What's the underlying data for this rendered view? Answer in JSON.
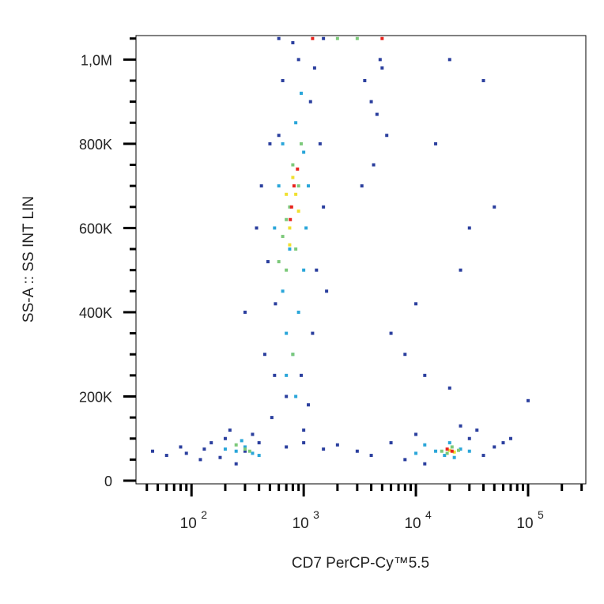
{
  "chart_data": {
    "type": "scatter",
    "x_label": "CD7 PerCP-Cy™5.5",
    "y_label": "SS-A :: SS INT LIN",
    "x_log": true,
    "xlim": [
      32,
      327000
    ],
    "ylim": [
      -7500,
      1057000
    ],
    "xticks": [
      {
        "value": 100,
        "label": "10",
        "sup": "2"
      },
      {
        "value": 1000,
        "label": "10",
        "sup": "3"
      },
      {
        "value": 10000,
        "label": "10",
        "sup": "4"
      },
      {
        "value": 100000,
        "label": "10",
        "sup": "5"
      }
    ],
    "xminorticks": [
      40,
      50,
      60,
      70,
      80,
      90,
      200,
      300,
      400,
      500,
      600,
      700,
      800,
      900,
      2000,
      3000,
      4000,
      5000,
      6000,
      7000,
      8000,
      9000,
      20000,
      30000,
      40000,
      50000,
      60000,
      70000,
      80000,
      90000,
      200000,
      300000
    ],
    "yticks": [
      0,
      {
        "value": 200000,
        "label": "200K"
      },
      {
        "value": 400000,
        "label": "400K"
      },
      {
        "value": 600000,
        "label": "600K"
      },
      {
        "value": 800000,
        "label": "800K"
      },
      {
        "value": 1000000,
        "label": "1,0M"
      }
    ],
    "yminorticks": [
      50000,
      100000,
      150000,
      250000,
      300000,
      350000,
      450000,
      500000,
      550000,
      650000,
      700000,
      750000,
      850000,
      900000,
      950000,
      1050000
    ],
    "series": [
      {
        "color": "#2b3f9e",
        "x": [
          450,
          520,
          560,
          1300,
          1200,
          480,
          420,
          1400,
          650,
          900,
          1150,
          380,
          1500,
          700,
          1000,
          600,
          1250,
          500,
          800,
          950,
          550,
          1100,
          300,
          1600,
          60,
          80,
          120,
          150,
          200,
          250,
          300,
          90,
          180,
          350,
          400,
          45,
          130,
          220,
          700,
          1000,
          1500,
          2000,
          3000,
          4000,
          6000,
          8000,
          10000,
          30000,
          40000,
          50000,
          60000,
          12000,
          35000,
          25000,
          70000,
          3500,
          4000,
          4500,
          5000,
          4200,
          3300,
          5500,
          4800,
          20000,
          15000,
          40000,
          25000,
          10000,
          8000,
          20000,
          50000,
          30000,
          12000,
          100000,
          6000,
          600,
          1500
        ],
        "values": [
          300000,
          150000,
          420000,
          500000,
          350000,
          520000,
          700000,
          800000,
          950000,
          1000000,
          900000,
          600000,
          650000,
          200000,
          120000,
          820000,
          980000,
          800000,
          1040000,
          250000,
          250000,
          180000,
          400000,
          450000,
          60000,
          80000,
          50000,
          90000,
          100000,
          40000,
          70000,
          65000,
          55000,
          110000,
          90000,
          70000,
          75000,
          120000,
          80000,
          90000,
          75000,
          85000,
          70000,
          60000,
          90000,
          50000,
          110000,
          100000,
          60000,
          80000,
          90000,
          40000,
          120000,
          130000,
          100000,
          950000,
          900000,
          870000,
          980000,
          750000,
          700000,
          820000,
          1000000,
          1000000,
          800000,
          950000,
          500000,
          420000,
          300000,
          220000,
          650000,
          600000,
          250000,
          190000,
          350000,
          1050000,
          1050000
        ]
      },
      {
        "color": "#2aa6d9",
        "x": [
          700,
          800,
          650,
          900,
          750,
          1050,
          600,
          1000,
          850,
          950,
          700,
          850,
          1100,
          550,
          1000,
          650,
          250,
          300,
          350,
          200,
          400,
          280,
          15000,
          12000,
          18000,
          25000,
          30000,
          20000,
          10000,
          22000
        ],
        "values": [
          350000,
          300000,
          450000,
          400000,
          550000,
          600000,
          700000,
          780000,
          850000,
          920000,
          250000,
          200000,
          700000,
          600000,
          500000,
          800000,
          70000,
          80000,
          65000,
          75000,
          60000,
          95000,
          70000,
          85000,
          60000,
          75000,
          70000,
          90000,
          65000,
          55000
        ]
      },
      {
        "color": "#7cc97a",
        "x": [
          700,
          750,
          900,
          650,
          800,
          850,
          950,
          700,
          800,
          600,
          300,
          250,
          330,
          17000,
          21000,
          19000,
          24000,
          2000,
          3000
        ],
        "values": [
          500000,
          650000,
          700000,
          580000,
          750000,
          550000,
          800000,
          620000,
          300000,
          520000,
          75000,
          85000,
          70000,
          70000,
          80000,
          65000,
          72000,
          1050000,
          1050000
        ]
      },
      {
        "color": "#f0e030",
        "x": [
          750,
          850,
          700,
          800,
          900,
          750,
          20000,
          22000
        ],
        "values": [
          600000,
          680000,
          680000,
          720000,
          640000,
          560000,
          72000,
          68000
        ]
      },
      {
        "color": "#e8251f",
        "x": [
          780,
          820,
          760,
          880,
          21000,
          19000,
          1200,
          5000
        ],
        "values": [
          650000,
          700000,
          620000,
          740000,
          70000,
          75000,
          1050000,
          1050000
        ]
      }
    ]
  }
}
